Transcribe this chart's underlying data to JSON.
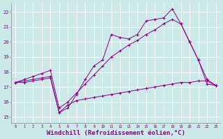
{
  "background_color": "#cce8e8",
  "grid_color": "#b0d8d8",
  "line_color": "#880088",
  "xlabel": "Windchill (Refroidissement éolien,°C)",
  "xlabel_fontsize": 6.5,
  "xtick_labels": [
    "0",
    "1",
    "2",
    "3",
    "4",
    "5",
    "6",
    "7",
    "8",
    "9",
    "10",
    "11",
    "12",
    "13",
    "14",
    "15",
    "16",
    "17",
    "18",
    "19",
    "20",
    "21",
    "22",
    "23"
  ],
  "ytick_labels": [
    "15",
    "16",
    "17",
    "18",
    "19",
    "20",
    "21",
    "22"
  ],
  "ylim": [
    14.6,
    22.6
  ],
  "xlim": [
    -0.5,
    23.5
  ],
  "line1_x": [
    0,
    1,
    2,
    3,
    4,
    5,
    6,
    7,
    8,
    9,
    10,
    11,
    12,
    13,
    14,
    15,
    16,
    17,
    18,
    19,
    20,
    21,
    22,
    23
  ],
  "line1_y": [
    17.3,
    17.4,
    17.5,
    17.6,
    17.7,
    15.3,
    15.6,
    16.5,
    17.5,
    18.4,
    18.8,
    20.5,
    20.3,
    20.2,
    20.5,
    21.4,
    21.5,
    21.6,
    22.2,
    21.2,
    20.0,
    18.8,
    17.2,
    17.1
  ],
  "line2_x": [
    0,
    1,
    2,
    3,
    4,
    5,
    6,
    7,
    8,
    9,
    10,
    11,
    12,
    13,
    14,
    15,
    16,
    17,
    18,
    19,
    20,
    21,
    22,
    23
  ],
  "line2_y": [
    17.3,
    17.5,
    17.7,
    17.9,
    18.1,
    15.6,
    16.0,
    16.6,
    17.2,
    17.8,
    18.4,
    19.0,
    19.4,
    19.8,
    20.1,
    20.5,
    20.8,
    21.2,
    21.5,
    21.2,
    20.0,
    18.8,
    17.5,
    17.1
  ],
  "line3_x": [
    0,
    1,
    2,
    3,
    4,
    5,
    6,
    7,
    8,
    9,
    10,
    11,
    12,
    13,
    14,
    15,
    16,
    17,
    18,
    19,
    20,
    21,
    22,
    23
  ],
  "line3_y": [
    17.3,
    17.3,
    17.4,
    17.5,
    17.6,
    15.3,
    15.8,
    16.1,
    16.2,
    16.3,
    16.4,
    16.5,
    16.6,
    16.7,
    16.8,
    16.9,
    17.0,
    17.1,
    17.2,
    17.3,
    17.3,
    17.4,
    17.4,
    17.1
  ]
}
